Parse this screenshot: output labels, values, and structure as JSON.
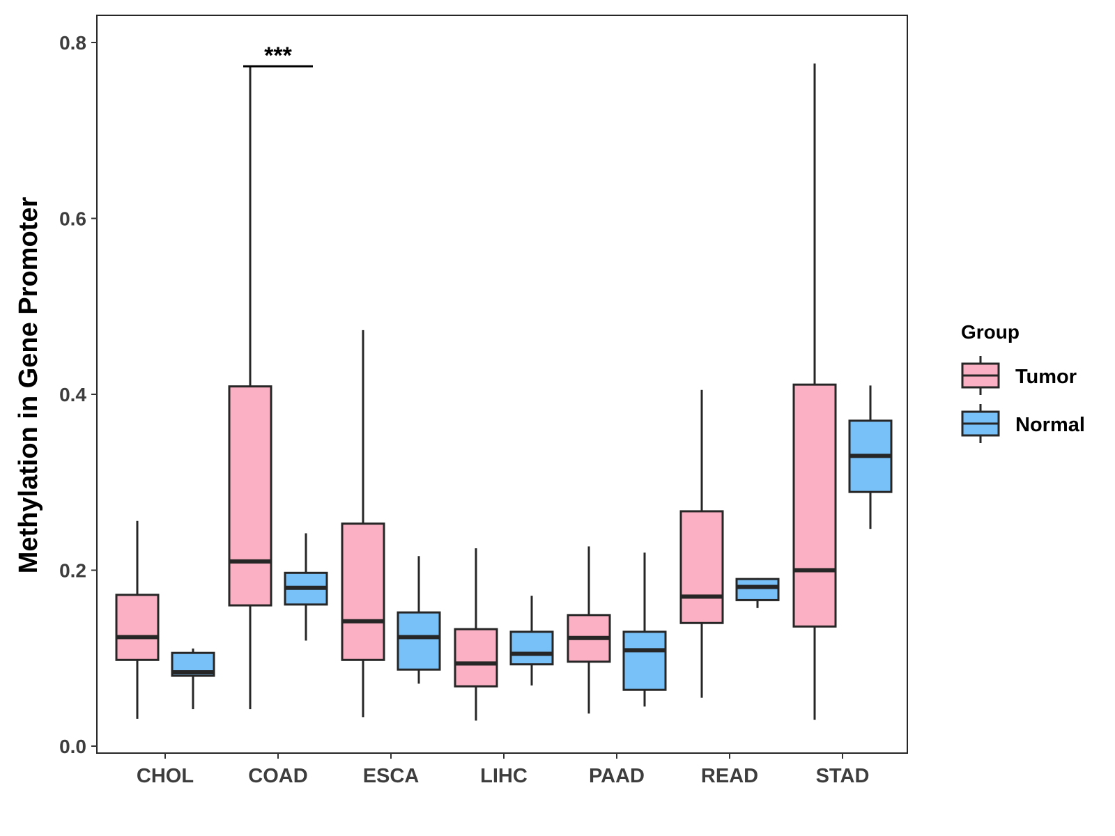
{
  "chart_data": {
    "type": "boxplot",
    "title": "",
    "xlabel": "",
    "ylabel": "Methylation in Gene Promoter",
    "ylim": [
      -0.008,
      0.825
    ],
    "yticks": [
      "0.0",
      "0.2",
      "0.4",
      "0.6",
      "0.8"
    ],
    "categories": [
      "CHOL",
      "COAD",
      "ESCA",
      "LIHC",
      "PAAD",
      "READ",
      "STAD"
    ],
    "legend": {
      "title": "Group",
      "position": "right",
      "entries": [
        {
          "name": "Tumor",
          "color": "#fbb0c3"
        },
        {
          "name": "Normal",
          "color": "#78c0f8"
        }
      ]
    },
    "series": [
      {
        "name": "Tumor",
        "color": "#fbb0c3",
        "boxes": [
          {
            "category": "CHOL",
            "min": 0.031,
            "q1": 0.098,
            "median": 0.124,
            "q3": 0.172,
            "max": 0.256
          },
          {
            "category": "COAD",
            "min": 0.042,
            "q1": 0.16,
            "median": 0.21,
            "q3": 0.409,
            "max": 0.772
          },
          {
            "category": "ESCA",
            "min": 0.033,
            "q1": 0.098,
            "median": 0.142,
            "q3": 0.253,
            "max": 0.473
          },
          {
            "category": "LIHC",
            "min": 0.029,
            "q1": 0.068,
            "median": 0.094,
            "q3": 0.133,
            "max": 0.225
          },
          {
            "category": "PAAD",
            "min": 0.037,
            "q1": 0.096,
            "median": 0.123,
            "q3": 0.149,
            "max": 0.227
          },
          {
            "category": "READ",
            "min": 0.055,
            "q1": 0.14,
            "median": 0.17,
            "q3": 0.267,
            "max": 0.405
          },
          {
            "category": "STAD",
            "min": 0.03,
            "q1": 0.136,
            "median": 0.2,
            "q3": 0.411,
            "max": 0.776
          }
        ]
      },
      {
        "name": "Normal",
        "color": "#78c0f8",
        "boxes": [
          {
            "category": "CHOL",
            "min": 0.042,
            "q1": 0.08,
            "median": 0.084,
            "q3": 0.106,
            "max": 0.111
          },
          {
            "category": "COAD",
            "min": 0.12,
            "q1": 0.161,
            "median": 0.18,
            "q3": 0.197,
            "max": 0.242
          },
          {
            "category": "ESCA",
            "min": 0.071,
            "q1": 0.087,
            "median": 0.124,
            "q3": 0.152,
            "max": 0.216
          },
          {
            "category": "LIHC",
            "min": 0.069,
            "q1": 0.093,
            "median": 0.105,
            "q3": 0.13,
            "max": 0.171
          },
          {
            "category": "PAAD",
            "min": 0.045,
            "q1": 0.064,
            "median": 0.109,
            "q3": 0.13,
            "max": 0.22
          },
          {
            "category": "READ",
            "min": 0.157,
            "q1": 0.166,
            "median": 0.181,
            "q3": 0.19,
            "max": 0.191
          },
          {
            "category": "STAD",
            "min": 0.247,
            "q1": 0.289,
            "median": 0.33,
            "q3": 0.37,
            "max": 0.41
          }
        ]
      }
    ],
    "annotations": [
      {
        "text": "***",
        "category": "COAD",
        "y": 0.773
      }
    ]
  }
}
